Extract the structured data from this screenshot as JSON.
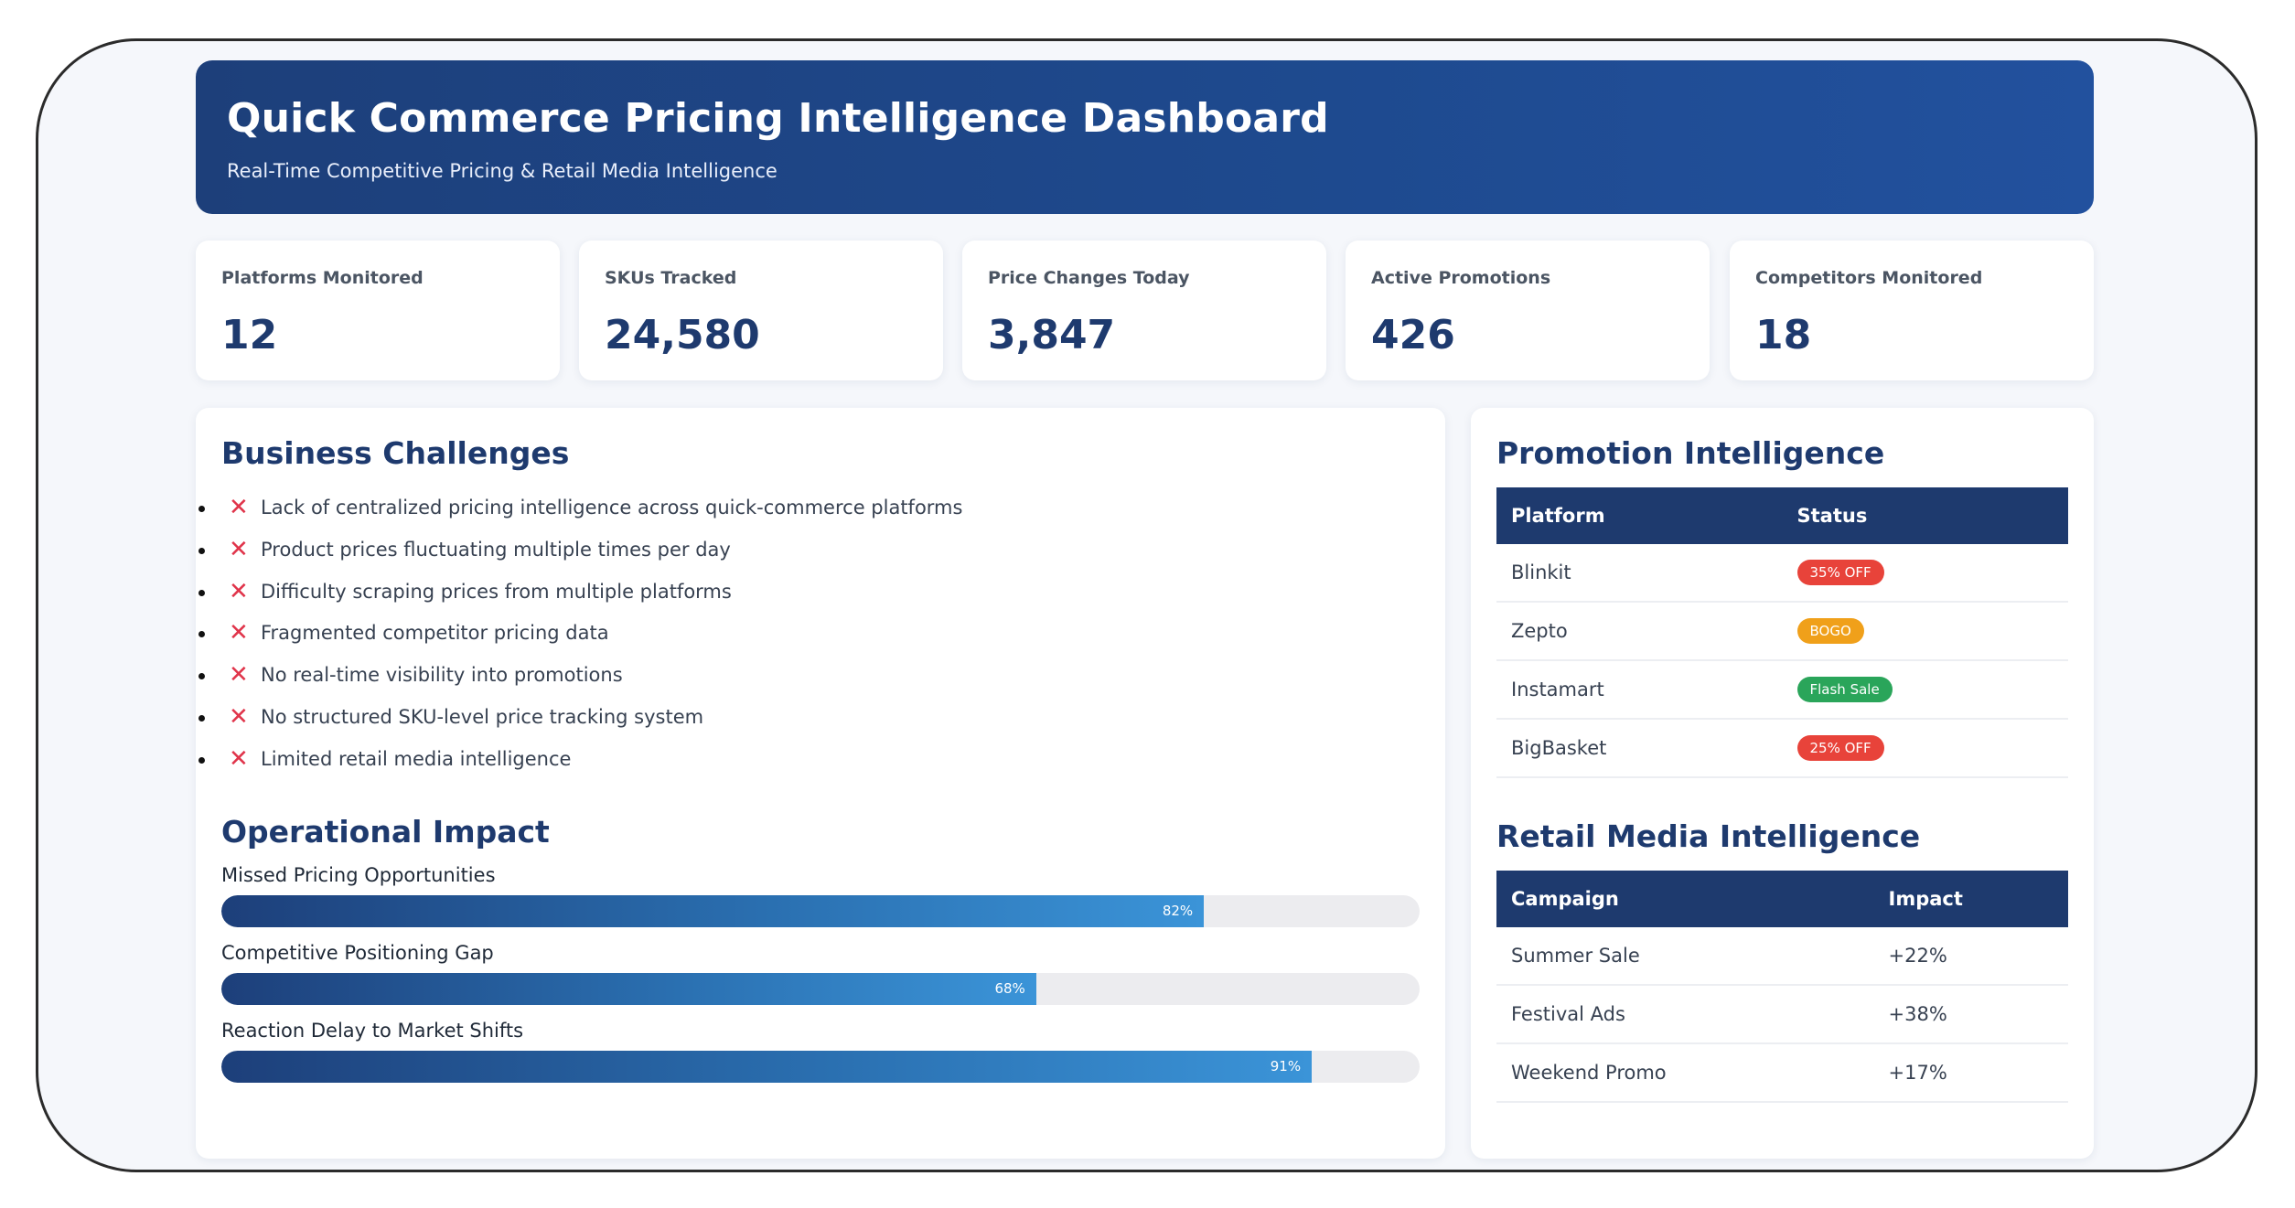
{
  "header": {
    "title": "Quick Commerce Pricing Intelligence Dashboard",
    "subtitle": "Real-Time Competitive Pricing & Retail Media Intelligence"
  },
  "kpis": [
    {
      "label": "Platforms Monitored",
      "value": "12"
    },
    {
      "label": "SKUs Tracked",
      "value": "24,580"
    },
    {
      "label": "Price Changes Today",
      "value": "3,847"
    },
    {
      "label": "Active Promotions",
      "value": "426"
    },
    {
      "label": "Competitors Monitored",
      "value": "18"
    }
  ],
  "challenges": {
    "title": "Business Challenges",
    "icon": "x-mark-icon",
    "items": [
      "Lack of centralized pricing intelligence across quick-commerce platforms",
      "Product prices fluctuating multiple times per day",
      "Difficulty scraping prices from multiple platforms",
      "Fragmented competitor pricing data",
      "No real-time visibility into promotions",
      "No structured SKU-level price tracking system",
      "Limited retail media intelligence"
    ]
  },
  "impact": {
    "title": "Operational Impact",
    "bars": [
      {
        "label": "Missed Pricing Opportunities",
        "value": 82,
        "pct_text": "82%"
      },
      {
        "label": "Competitive Positioning Gap",
        "value": 68,
        "pct_text": "68%"
      },
      {
        "label": "Reaction Delay to Market Shifts",
        "value": 91,
        "pct_text": "91%"
      }
    ]
  },
  "promotion": {
    "title": "Promotion Intelligence",
    "headers": [
      "Platform",
      "Status"
    ],
    "rows": [
      {
        "platform": "Blinkit",
        "status": "35% OFF",
        "color": "#e8433a"
      },
      {
        "platform": "Zepto",
        "status": "BOGO",
        "color": "#f0a01a"
      },
      {
        "platform": "Instamart",
        "status": "Flash Sale",
        "color": "#2aa55a"
      },
      {
        "platform": "BigBasket",
        "status": "25% OFF",
        "color": "#e8433a"
      }
    ]
  },
  "retail_media": {
    "title": "Retail Media Intelligence",
    "headers": [
      "Campaign",
      "Impact"
    ],
    "rows": [
      {
        "campaign": "Summer Sale",
        "impact": "+22%"
      },
      {
        "campaign": "Festival Ads",
        "impact": "+38%"
      },
      {
        "campaign": "Weekend Promo",
        "impact": "+17%"
      }
    ]
  },
  "colors": {
    "primary": "#1e3a6e",
    "accent": "#3b94d8",
    "danger": "#e0344a"
  }
}
